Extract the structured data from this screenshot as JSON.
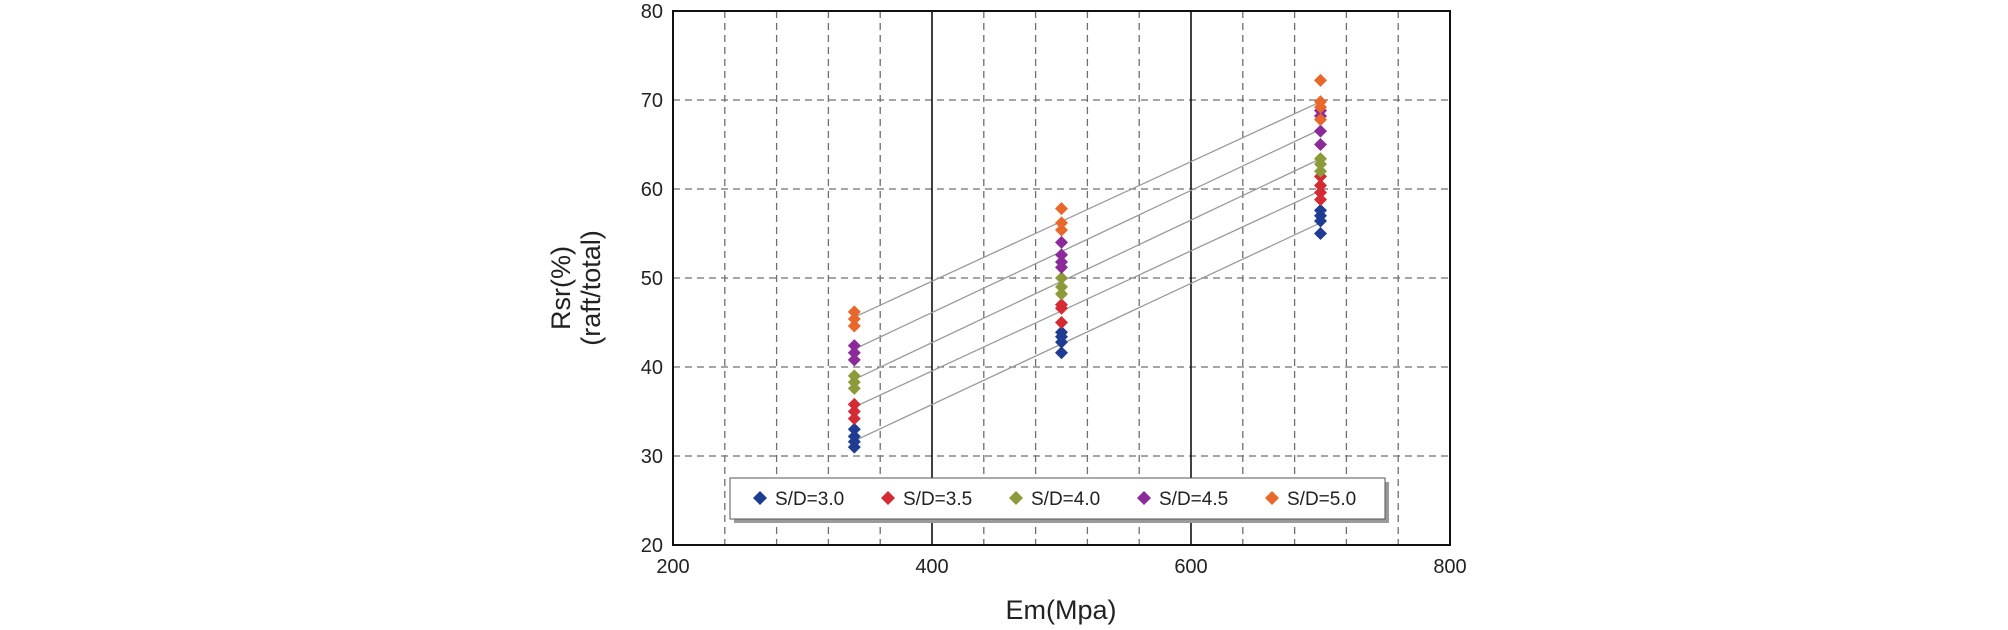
{
  "chart_data": {
    "type": "scatter",
    "title": "",
    "xlabel": "Em(Mpa)",
    "ylabel_line1": "Rsr(%)",
    "ylabel_line2": "(raft/total)",
    "xlim": [
      200,
      800
    ],
    "ylim": [
      20,
      80
    ],
    "xticks": [
      200,
      400,
      600,
      800
    ],
    "yticks": [
      20,
      30,
      40,
      50,
      60,
      70,
      80
    ],
    "x_minor_gridlines": [
      240,
      280,
      320,
      360,
      440,
      480,
      520,
      560,
      640,
      680,
      720,
      760
    ],
    "x_solid_gridlines": [
      400,
      600
    ],
    "grid": true,
    "legend_position": "bottom",
    "series": [
      {
        "name": "S/D=3.0",
        "color": "#1F3C93",
        "points": [
          [
            340,
            31.0
          ],
          [
            340,
            31.6
          ],
          [
            340,
            32.2
          ],
          [
            340,
            33.0
          ],
          [
            500,
            41.6
          ],
          [
            500,
            42.8
          ],
          [
            500,
            43.4
          ],
          [
            500,
            43.9
          ],
          [
            700,
            55.0
          ],
          [
            700,
            56.4
          ],
          [
            700,
            57.0
          ],
          [
            700,
            57.6
          ]
        ],
        "trend": [
          [
            340,
            31.7
          ],
          [
            700,
            56.2
          ]
        ]
      },
      {
        "name": "S/D=3.5",
        "color": "#D42A33",
        "points": [
          [
            340,
            34.2
          ],
          [
            340,
            35.0
          ],
          [
            340,
            35.8
          ],
          [
            500,
            45.0
          ],
          [
            500,
            46.6
          ],
          [
            500,
            47.0
          ],
          [
            700,
            58.8
          ],
          [
            700,
            59.6
          ],
          [
            700,
            60.4
          ],
          [
            700,
            61.4
          ]
        ],
        "trend": [
          [
            340,
            35.5
          ],
          [
            700,
            59.8
          ]
        ]
      },
      {
        "name": "S/D=4.0",
        "color": "#8E9A3A",
        "points": [
          [
            340,
            37.6
          ],
          [
            340,
            38.3
          ],
          [
            340,
            39.0
          ],
          [
            500,
            48.2
          ],
          [
            500,
            49.0
          ],
          [
            500,
            50.0
          ],
          [
            700,
            62.0
          ],
          [
            700,
            62.8
          ],
          [
            700,
            63.4
          ]
        ],
        "trend": [
          [
            340,
            38.6
          ],
          [
            700,
            63.4
          ]
        ]
      },
      {
        "name": "S/D=4.5",
        "color": "#8B2B9A",
        "points": [
          [
            340,
            40.8
          ],
          [
            340,
            41.6
          ],
          [
            340,
            42.4
          ],
          [
            500,
            51.2
          ],
          [
            500,
            51.8
          ],
          [
            500,
            52.6
          ],
          [
            500,
            54.0
          ],
          [
            700,
            65.0
          ],
          [
            700,
            66.5
          ],
          [
            700,
            68.2
          ],
          [
            700,
            68.8
          ]
        ],
        "trend": [
          [
            340,
            42.0
          ],
          [
            700,
            66.7
          ]
        ]
      },
      {
        "name": "S/D=5.0",
        "color": "#E8672A",
        "points": [
          [
            340,
            44.6
          ],
          [
            340,
            45.4
          ],
          [
            340,
            46.2
          ],
          [
            500,
            55.4
          ],
          [
            500,
            56.2
          ],
          [
            500,
            57.8
          ],
          [
            700,
            67.8
          ],
          [
            700,
            69.2
          ],
          [
            700,
            69.8
          ],
          [
            700,
            72.2
          ]
        ],
        "trend": [
          [
            340,
            45.6
          ],
          [
            700,
            69.8
          ]
        ]
      }
    ]
  }
}
